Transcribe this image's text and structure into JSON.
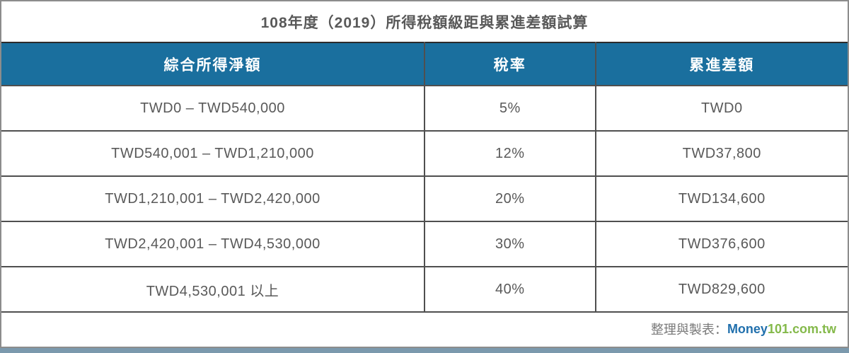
{
  "chart_data": {
    "type": "table",
    "title": "108年度（2019）所得稅額級距與累進差額試算",
    "columns": [
      "綜合所得淨額",
      "稅率",
      "累進差額"
    ],
    "rows": [
      [
        "TWD0 – TWD540,000",
        "5%",
        "TWD0"
      ],
      [
        "TWD540,001 – TWD1,210,000",
        "12%",
        "TWD37,800"
      ],
      [
        "TWD1,210,001 – TWD2,420,000",
        "20%",
        "TWD134,600"
      ],
      [
        "TWD2,420,001 – TWD4,530,000",
        "30%",
        "TWD376,600"
      ],
      [
        "TWD4,530,001 以上",
        "40%",
        "TWD829,600"
      ]
    ],
    "layout_hints": {
      "column_widths_pct": [
        50,
        20.2,
        29.8
      ],
      "header_style": "blue background, white bold text",
      "grid": "dark gray borders on all cells"
    }
  },
  "footer": {
    "label": "整理與製表：",
    "brand_blue_part": "Money",
    "brand_green_part": "101.com.tw"
  },
  "colors": {
    "header_bg": "#1a6f9e",
    "header_text": "#ffffff",
    "title_text": "#595959",
    "cell_text": "#595959",
    "inner_border": "#4f4f4f",
    "outer_border": "#8c8c8c",
    "brand_blue": "#2170ad",
    "brand_green": "#84b94a",
    "bottom_strip": "#7b99ad"
  }
}
